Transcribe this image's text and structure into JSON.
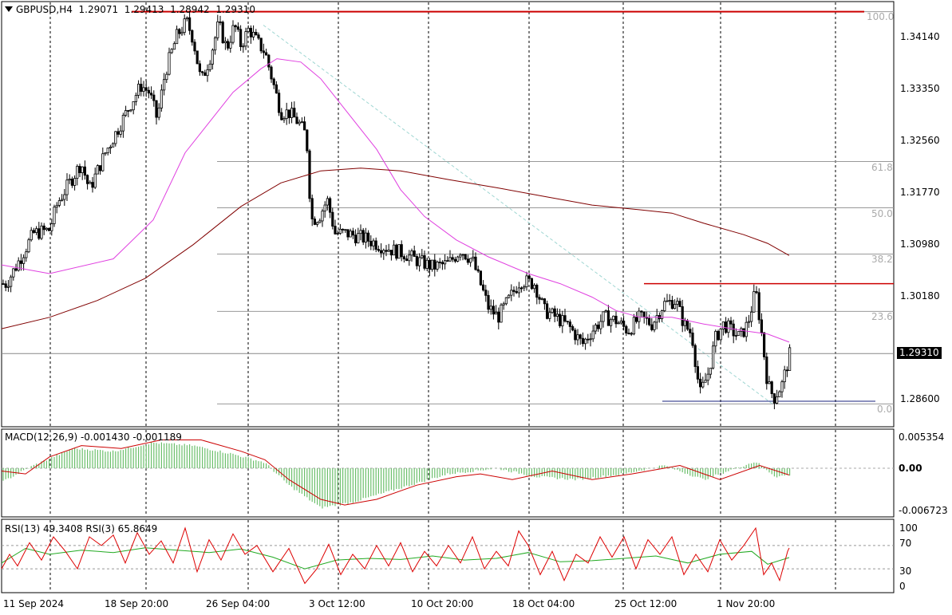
{
  "header": {
    "symbol_tf": "GBPUSD,H4",
    "open": "1.29071",
    "high": "1.29413",
    "low": "1.28942",
    "close": "1.29310"
  },
  "current_price": "1.29310",
  "price_axis": {
    "ticks": [
      "1.34140",
      "1.33350",
      "1.32560",
      "1.31770",
      "1.30980",
      "1.30180",
      "1.28600"
    ]
  },
  "fib_levels": {
    "lv100": "100.0",
    "lv618": "61.8",
    "lv500": "50.0",
    "lv382": "38.2",
    "lv236": "23.6",
    "lv0": "0.0"
  },
  "macd": {
    "label": "MACD(12,26,9) -0.001430 -0.001189",
    "ticks": [
      "0.005354",
      "0.00",
      "-0.006723"
    ]
  },
  "rsi": {
    "label": "RSI(13) 49.3408  RSI(3) 65.8649",
    "ticks": [
      "100",
      "70",
      "30",
      "0"
    ]
  },
  "time_axis": {
    "labels": [
      "11 Sep 2024",
      "18 Sep 20:00",
      "26 Sep 04:00",
      "3 Oct 12:00",
      "10 Oct 20:00",
      "18 Oct 04:00",
      "25 Oct 12:00",
      "1 Nov 20:00"
    ]
  },
  "chart_data": {
    "type": "candlestick",
    "title": "GBPUSD,H4",
    "ylim": [
      1.2822,
      1.3455
    ],
    "price_path": [
      [
        0,
        1.3035
      ],
      [
        6,
        1.3035
      ],
      [
        20,
        1.3065
      ],
      [
        40,
        1.311
      ],
      [
        60,
        1.3115
      ],
      [
        70,
        1.3155
      ],
      [
        90,
        1.3195
      ],
      [
        100,
        1.3215
      ],
      [
        110,
        1.3175
      ],
      [
        130,
        1.323
      ],
      [
        150,
        1.3275
      ],
      [
        165,
        1.331
      ],
      [
        175,
        1.333
      ],
      [
        185,
        1.332
      ],
      [
        195,
        1.328
      ],
      [
        205,
        1.335
      ],
      [
        220,
        1.3405
      ],
      [
        232,
        1.3425
      ],
      [
        240,
        1.34
      ],
      [
        250,
        1.3335
      ],
      [
        262,
        1.3375
      ],
      [
        272,
        1.3422
      ],
      [
        282,
        1.3385
      ],
      [
        292,
        1.342
      ],
      [
        300,
        1.339
      ],
      [
        310,
        1.3415
      ],
      [
        320,
        1.3395
      ],
      [
        330,
        1.338
      ],
      [
        340,
        1.3335
      ],
      [
        350,
        1.329
      ],
      [
        360,
        1.329
      ],
      [
        372,
        1.3275
      ],
      [
        382,
        1.3255
      ],
      [
        388,
        1.313
      ],
      [
        398,
        1.3135
      ],
      [
        408,
        1.316
      ],
      [
        418,
        1.311
      ],
      [
        432,
        1.311
      ],
      [
        448,
        1.3105
      ],
      [
        460,
        1.31
      ],
      [
        475,
        1.3092
      ],
      [
        490,
        1.3085
      ],
      [
        505,
        1.308
      ],
      [
        520,
        1.307
      ],
      [
        540,
        1.306
      ],
      [
        560,
        1.3065
      ],
      [
        575,
        1.3085
      ],
      [
        590,
        1.307
      ],
      [
        600,
        1.3035
      ],
      [
        610,
        1.3
      ],
      [
        622,
        1.2985
      ],
      [
        635,
        1.301
      ],
      [
        650,
        1.304
      ],
      [
        668,
        1.3035
      ],
      [
        680,
        1.2995
      ],
      [
        695,
        1.2985
      ],
      [
        712,
        1.297
      ],
      [
        728,
        1.2945
      ],
      [
        740,
        1.2965
      ],
      [
        755,
        1.2985
      ],
      [
        770,
        1.298
      ],
      [
        785,
        1.2965
      ],
      [
        800,
        1.2985
      ],
      [
        815,
        1.2975
      ],
      [
        830,
        1.3005
      ],
      [
        845,
        1.301
      ],
      [
        855,
        1.2975
      ],
      [
        865,
        1.296
      ],
      [
        875,
        1.287
      ],
      [
        885,
        1.29
      ],
      [
        895,
        1.2955
      ],
      [
        905,
        1.2975
      ],
      [
        915,
        1.2965
      ],
      [
        925,
        1.2955
      ],
      [
        935,
        1.2975
      ],
      [
        945,
        1.3025
      ],
      [
        952,
        1.2965
      ],
      [
        960,
        1.2885
      ],
      [
        968,
        1.2865
      ],
      [
        978,
        1.2885
      ],
      [
        988,
        1.2931
      ]
    ],
    "ma_fast": [
      [
        0,
        1.3063
      ],
      [
        60,
        1.305
      ],
      [
        140,
        1.3072
      ],
      [
        190,
        1.313
      ],
      [
        230,
        1.323
      ],
      [
        290,
        1.332
      ],
      [
        325,
        1.3355
      ],
      [
        345,
        1.337
      ],
      [
        375,
        1.3365
      ],
      [
        400,
        1.334
      ],
      [
        430,
        1.3295
      ],
      [
        470,
        1.3235
      ],
      [
        500,
        1.3175
      ],
      [
        530,
        1.3135
      ],
      [
        570,
        1.31
      ],
      [
        610,
        1.3075
      ],
      [
        660,
        1.305
      ],
      [
        700,
        1.3035
      ],
      [
        740,
        1.3015
      ],
      [
        770,
        1.2995
      ],
      [
        800,
        1.2985
      ],
      [
        840,
        1.2985
      ],
      [
        880,
        1.2975
      ],
      [
        930,
        1.2965
      ],
      [
        960,
        1.296
      ],
      [
        987,
        1.2948
      ]
    ],
    "ma_slow": [
      [
        0,
        1.2968
      ],
      [
        60,
        1.2985
      ],
      [
        120,
        1.301
      ],
      [
        180,
        1.3043
      ],
      [
        240,
        1.3093
      ],
      [
        300,
        1.315
      ],
      [
        350,
        1.3185
      ],
      [
        400,
        1.3203
      ],
      [
        450,
        1.3207
      ],
      [
        500,
        1.3203
      ],
      [
        560,
        1.319
      ],
      [
        620,
        1.3178
      ],
      [
        680,
        1.3165
      ],
      [
        740,
        1.3152
      ],
      [
        800,
        1.3145
      ],
      [
        840,
        1.314
      ],
      [
        880,
        1.3125
      ],
      [
        930,
        1.3108
      ],
      [
        960,
        1.3095
      ],
      [
        987,
        1.3077
      ]
    ],
    "fibonacci": {
      "high": 1.344,
      "low": 1.2856,
      "levels": [
        0,
        23.6,
        38.2,
        50.0,
        61.8,
        100.0
      ]
    },
    "horizontal_lines": [
      1.344,
      1.3035,
      1.286,
      1.2931
    ],
    "macd_signal": [
      [
        0,
        -0.0005
      ],
      [
        30,
        -0.001
      ],
      [
        60,
        0.002
      ],
      [
        100,
        0.004
      ],
      [
        150,
        0.0035
      ],
      [
        200,
        0.005
      ],
      [
        250,
        0.005
      ],
      [
        300,
        0.003
      ],
      [
        330,
        0.0015
      ],
      [
        360,
        -0.002
      ],
      [
        400,
        -0.0055
      ],
      [
        430,
        -0.0065
      ],
      [
        470,
        -0.0055
      ],
      [
        520,
        -0.003
      ],
      [
        570,
        -0.0015
      ],
      [
        600,
        -0.001
      ],
      [
        640,
        -0.002
      ],
      [
        690,
        -0.0005
      ],
      [
        740,
        -0.002
      ],
      [
        790,
        -0.001
      ],
      [
        850,
        0.0005
      ],
      [
        900,
        -0.002
      ],
      [
        950,
        0.0005
      ],
      [
        987,
        -0.0012
      ]
    ],
    "macd_hist": [
      [
        0,
        -0.0025
      ],
      [
        40,
        0.0005
      ],
      [
        90,
        0.0035
      ],
      [
        140,
        0.003
      ],
      [
        190,
        0.0045
      ],
      [
        240,
        0.004
      ],
      [
        290,
        0.0025
      ],
      [
        330,
        0.001
      ],
      [
        360,
        -0.003
      ],
      [
        400,
        -0.007
      ],
      [
        440,
        -0.006
      ],
      [
        500,
        -0.0035
      ],
      [
        560,
        -0.001
      ],
      [
        620,
        0.0
      ],
      [
        670,
        -0.0015
      ],
      [
        720,
        -0.002
      ],
      [
        780,
        -0.001
      ],
      [
        830,
        0.0005
      ],
      [
        880,
        -0.002
      ],
      [
        920,
        0.0
      ],
      [
        945,
        0.0012
      ],
      [
        970,
        -0.0015
      ],
      [
        987,
        -0.0012
      ]
    ],
    "rsi_slow": [
      [
        0,
        40
      ],
      [
        30,
        65
      ],
      [
        60,
        55
      ],
      [
        100,
        62
      ],
      [
        140,
        58
      ],
      [
        180,
        66
      ],
      [
        220,
        62
      ],
      [
        260,
        58
      ],
      [
        300,
        64
      ],
      [
        340,
        50
      ],
      [
        380,
        30
      ],
      [
        420,
        45
      ],
      [
        460,
        48
      ],
      [
        500,
        46
      ],
      [
        540,
        52
      ],
      [
        580,
        45
      ],
      [
        620,
        48
      ],
      [
        660,
        58
      ],
      [
        700,
        42
      ],
      [
        740,
        44
      ],
      [
        780,
        48
      ],
      [
        820,
        52
      ],
      [
        860,
        40
      ],
      [
        900,
        55
      ],
      [
        940,
        60
      ],
      [
        960,
        38
      ],
      [
        987,
        49.34
      ]
    ],
    "rsi_fast": [
      [
        0,
        30
      ],
      [
        10,
        55
      ],
      [
        20,
        35
      ],
      [
        35,
        75
      ],
      [
        50,
        45
      ],
      [
        65,
        85
      ],
      [
        80,
        60
      ],
      [
        95,
        30
      ],
      [
        110,
        85
      ],
      [
        125,
        70
      ],
      [
        140,
        88
      ],
      [
        155,
        40
      ],
      [
        170,
        92
      ],
      [
        185,
        55
      ],
      [
        200,
        78
      ],
      [
        215,
        40
      ],
      [
        230,
        100
      ],
      [
        245,
        25
      ],
      [
        260,
        80
      ],
      [
        275,
        45
      ],
      [
        290,
        90
      ],
      [
        305,
        55
      ],
      [
        320,
        70
      ],
      [
        340,
        25
      ],
      [
        360,
        65
      ],
      [
        380,
        5
      ],
      [
        395,
        30
      ],
      [
        410,
        72
      ],
      [
        425,
        20
      ],
      [
        440,
        55
      ],
      [
        455,
        30
      ],
      [
        470,
        70
      ],
      [
        485,
        35
      ],
      [
        500,
        75
      ],
      [
        515,
        25
      ],
      [
        530,
        60
      ],
      [
        545,
        35
      ],
      [
        560,
        70
      ],
      [
        575,
        40
      ],
      [
        590,
        85
      ],
      [
        605,
        30
      ],
      [
        620,
        60
      ],
      [
        635,
        35
      ],
      [
        648,
        95
      ],
      [
        660,
        70
      ],
      [
        675,
        20
      ],
      [
        690,
        60
      ],
      [
        705,
        10
      ],
      [
        720,
        55
      ],
      [
        735,
        40
      ],
      [
        750,
        85
      ],
      [
        765,
        50
      ],
      [
        780,
        85
      ],
      [
        795,
        30
      ],
      [
        810,
        80
      ],
      [
        825,
        55
      ],
      [
        840,
        85
      ],
      [
        855,
        20
      ],
      [
        870,
        55
      ],
      [
        885,
        25
      ],
      [
        900,
        80
      ],
      [
        915,
        45
      ],
      [
        930,
        70
      ],
      [
        945,
        100
      ],
      [
        955,
        20
      ],
      [
        965,
        40
      ],
      [
        975,
        10
      ],
      [
        985,
        60
      ],
      [
        987,
        65.86
      ]
    ]
  }
}
